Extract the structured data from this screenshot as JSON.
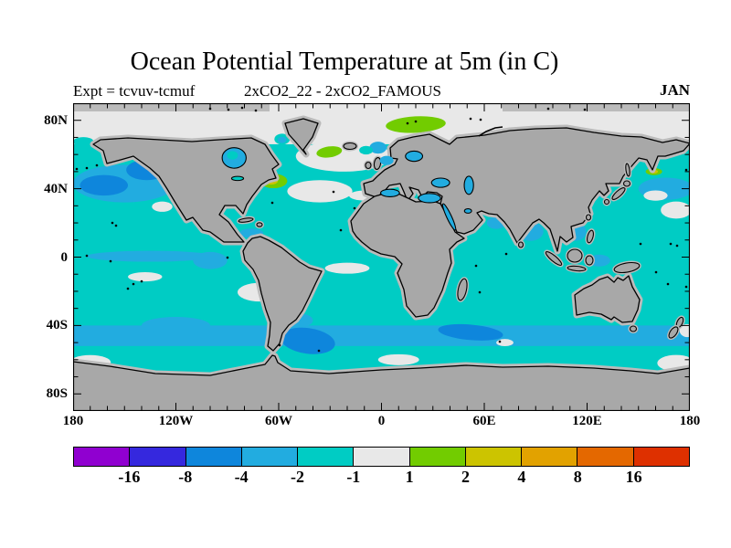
{
  "header": {
    "title": "Ocean Potential Temperature at 5m (in C)",
    "experiment": "Expt = tcvuv-tcmuf",
    "comparison": "2xCO2_22 - 2xCO2_FAMOUS",
    "month": "JAN"
  },
  "chart_data": {
    "type": "heatmap",
    "projection": "global longitude-latitude map",
    "title": "Ocean Potential Temperature at 5m (in C)",
    "subtitle": "2xCO2_22 - 2xCO2_FAMOUS",
    "experiment_label": "Expt = tcvuv-tcmuf",
    "month": "JAN",
    "units": "C",
    "x_axis": {
      "range": [
        -180,
        180
      ],
      "ticks": [
        -180,
        -120,
        -60,
        0,
        60,
        120,
        180
      ],
      "labels": [
        "180",
        "120W",
        "60W",
        "0",
        "60E",
        "120E",
        "180"
      ],
      "minor_tick_deg": 10
    },
    "y_axis": {
      "range": [
        -90,
        90
      ],
      "ticks": [
        80,
        40,
        0,
        -40,
        -80
      ],
      "labels": [
        "80N",
        "40N",
        "0",
        "40S",
        "80S"
      ],
      "minor_tick_deg": 10
    },
    "colorbar": {
      "tick_labels": [
        "-16",
        "-8",
        "-4",
        "-2",
        "-1",
        "1",
        "2",
        "4",
        "8",
        "16"
      ],
      "segment_colors": [
        "#9000D0",
        "#3528DE",
        "#0E86DC",
        "#22ACE0",
        "#00CCC4",
        "#E8E8E8",
        "#72CC00",
        "#CCC400",
        "#E2A200",
        "#E46800",
        "#DE3000"
      ],
      "band_ranges": [
        "<-16",
        "-16..-8",
        "-8..-4",
        "-4..-2",
        "-2..-1",
        "-1..1",
        "1..2",
        "2..4",
        "4..8",
        "8..16",
        ">16"
      ]
    },
    "land_color": "#A8A8A8",
    "land_mask_color": "#BBBBBB",
    "base_band": 4,
    "anomaly_patches": [
      {
        "region": "Arctic Ocean",
        "shape": "rect",
        "lon0": -180,
        "lon1": 180,
        "lat0": 66,
        "lat1": 90,
        "band": 5
      },
      {
        "region": "Bering Strait",
        "shape": "ellipse",
        "lon": -174,
        "lat": 67.5,
        "rlon": 6,
        "rlat": 2.7,
        "band": 4
      },
      {
        "region": "Davis Strait",
        "shape": "ellipse",
        "lon": -58,
        "lat": 69,
        "rlon": 4.5,
        "rlat": 3.2,
        "band": 4
      },
      {
        "region": "Davis Strait core",
        "shape": "ellipse",
        "lon": -58,
        "lat": 68.5,
        "rlon": 2.5,
        "rlat": 1.8,
        "band": 3
      },
      {
        "region": "Subpolar North Atlantic",
        "shape": "ellipse",
        "lon": -22,
        "lat": 59,
        "rlon": 28,
        "rlat": 9,
        "band": 5
      },
      {
        "region": "Norwegian Sea",
        "shape": "ellipse",
        "lon": -2,
        "lat": 64,
        "rlon": 5,
        "rlat": 3.5,
        "band": 3
      },
      {
        "region": "Norwegian Sea cold spot",
        "shape": "ellipse",
        "lon": -9,
        "lat": 62.5,
        "rlon": 4,
        "rlat": 2.5,
        "band": 4
      },
      {
        "region": "Northeast Pacific band",
        "shape": "ellipse",
        "lon": -150,
        "lat": 43,
        "rlon": 30,
        "rlat": 11,
        "band": 3
      },
      {
        "region": "Northwest Pacific band",
        "shape": "ellipse",
        "lon": 166,
        "lat": 40,
        "rlon": 16,
        "rlat": 6.5,
        "band": 3
      },
      {
        "region": "Gulf of Alaska core",
        "shape": "ellipse",
        "lon": -137,
        "lat": 51,
        "rlon": 12,
        "rlat": 6,
        "band": 2
      },
      {
        "region": "Central North Pacific core",
        "shape": "ellipse",
        "lon": -162,
        "lat": 42,
        "rlon": 14,
        "rlat": 6,
        "band": 2
      },
      {
        "region": "Northwest Pacific neutral 1",
        "shape": "ellipse",
        "lon": 172,
        "lat": 27.5,
        "rlon": 9,
        "rlat": 5,
        "band": 5
      },
      {
        "region": "Northwest Pacific neutral 2",
        "shape": "ellipse",
        "lon": 160,
        "lat": 36,
        "rlon": 7,
        "rlat": 3,
        "band": 5
      },
      {
        "region": "California offshore neutral",
        "shape": "ellipse",
        "lon": -128,
        "lat": 29.5,
        "rlon": 6,
        "rlat": 3,
        "band": 5
      },
      {
        "region": "Central North Atlantic neutral",
        "shape": "ellipse",
        "lon": -36,
        "lat": 38.5,
        "rlon": 19,
        "rlat": 6.5,
        "band": 5
      },
      {
        "region": "Azores neutral streak",
        "shape": "ellipse",
        "lon": -9,
        "lat": 36,
        "rlon": 10,
        "rlat": 3,
        "band": 5
      },
      {
        "region": "Equatorial Pacific cold tongue",
        "shape": "ellipse",
        "lon": -135,
        "lat": 0.5,
        "rlon": 37,
        "rlat": 3.2,
        "band": 3
      },
      {
        "region": "Eastern equatorial Pacific",
        "shape": "ellipse",
        "lon": -100,
        "lat": -2,
        "rlon": 10,
        "rlat": 5,
        "band": 3
      },
      {
        "region": "Caribbean Sea",
        "shape": "ellipse",
        "lon": -76,
        "lat": 14,
        "rlon": 7,
        "rlat": 2.7,
        "band": 3
      },
      {
        "region": "Central South Pacific neutral",
        "shape": "ellipse",
        "lon": -138,
        "lat": -11.5,
        "rlon": 10,
        "rlat": 2.7,
        "band": 5
      },
      {
        "region": "Equatorial Atlantic neutral",
        "shape": "ellipse",
        "lon": -20,
        "lat": -6.5,
        "rlon": 13,
        "rlat": 3.2,
        "band": 5
      },
      {
        "region": "Southern mid-latitude band",
        "shape": "rect",
        "lon0": -180,
        "lon1": 180,
        "lat0": -52,
        "lat1": -40,
        "band": 3
      },
      {
        "region": "South Pacific 120W",
        "shape": "ellipse",
        "lon": -120,
        "lat": -40,
        "rlon": 20,
        "rlat": 5,
        "band": 3
      },
      {
        "region": "Brazil-Malvinas confluence",
        "shape": "ellipse",
        "lon": -48,
        "lat": -37,
        "rlon": 8,
        "rlat": 4,
        "band": 3
      },
      {
        "region": "Argentine Basin core",
        "shape": "ellipse",
        "lon": -43,
        "lat": -49,
        "rlon": 16,
        "rlat": 7.5,
        "band": 2,
        "rot": 8
      },
      {
        "region": "Southwest Indian core",
        "shape": "ellipse",
        "lon": 52,
        "lat": -44,
        "rlon": 19,
        "rlat": 4.5,
        "band": 2,
        "rot": 5
      },
      {
        "region": "Peru-Chile offshore neutral",
        "shape": "ellipse",
        "lon": -71,
        "lat": -20.5,
        "rlon": 13,
        "rlat": 5.5,
        "band": 5
      },
      {
        "region": "Southern Ocean 170W neutral",
        "shape": "ellipse",
        "lon": -170,
        "lat": -61.5,
        "rlon": 12,
        "rlat": 4.2,
        "band": 5
      },
      {
        "region": "Southern Ocean 10E neutral",
        "shape": "ellipse",
        "lon": 10,
        "lat": -60,
        "rlon": 12,
        "rlat": 3.2,
        "band": 5
      },
      {
        "region": "Southern Ocean 172E neutral",
        "shape": "ellipse",
        "lon": 172,
        "lat": -62,
        "rlon": 11,
        "rlat": 4.8,
        "band": 5
      },
      {
        "region": "East of New Zealand neutral",
        "shape": "ellipse",
        "lon": 178.5,
        "lat": -43,
        "rlon": 4.5,
        "rlat": 3.8,
        "band": 5
      },
      {
        "region": "South Indian neutral",
        "shape": "ellipse",
        "lon": 72,
        "lat": -50,
        "rlon": 5,
        "rlat": 2.1,
        "band": 5
      },
      {
        "region": "Bay of Bengal",
        "shape": "ellipse",
        "lon": 87,
        "lat": 15,
        "rlon": 7.5,
        "rlat": 5.5,
        "band": 3
      },
      {
        "region": "Arabian Sea",
        "shape": "ellipse",
        "lon": 67,
        "lat": 20,
        "rlon": 5.5,
        "rlat": 3.5,
        "band": 3
      },
      {
        "region": "South China Sea",
        "shape": "ellipse",
        "lon": 113,
        "lat": 15,
        "rlon": 6.5,
        "rlat": 5.5,
        "band": 3
      },
      {
        "region": "Sea of Japan",
        "shape": "ellipse",
        "lon": 128,
        "lat": 39,
        "rlon": 5,
        "rlat": 4,
        "band": 3
      },
      {
        "region": "Banda Sea",
        "shape": "ellipse",
        "lon": 127,
        "lat": -2,
        "rlon": 6.5,
        "rlat": 3.5,
        "band": 3
      },
      {
        "region": "Iceland neutral halo",
        "shape": "ellipse",
        "lon": -29,
        "lat": 60,
        "rlon": 12,
        "rlat": 5.3,
        "band": 5
      },
      {
        "region": "Barents Sea warm",
        "shape": "ellipse",
        "lon": 20,
        "lat": 77.5,
        "rlon": 17.5,
        "rlat": 4.8,
        "band": 6,
        "rot": -3
      },
      {
        "region": "Irminger Sea warm",
        "shape": "ellipse",
        "lon": -30.5,
        "lat": 61.5,
        "rlon": 7.5,
        "rlat": 3.2,
        "band": 6,
        "rot": -8
      },
      {
        "region": "Newfoundland warm",
        "shape": "ellipse",
        "lon": -63,
        "lat": 44.5,
        "rlon": 8,
        "rlat": 4.2,
        "band": 6
      },
      {
        "region": "Newfoundland warm core",
        "shape": "ellipse",
        "lon": -64.5,
        "lat": 44.5,
        "rlon": 4,
        "rlat": 2.1,
        "band": 7
      },
      {
        "region": "Kamchatka warm",
        "shape": "ellipse",
        "lon": 159,
        "lat": 50,
        "rlon": 4.8,
        "rlat": 2.1,
        "band": 6
      },
      {
        "region": "Kamchatka warm core",
        "shape": "ellipse",
        "lon": 159,
        "lat": 50,
        "rlon": 2.4,
        "rlat": 1.1,
        "band": 7
      },
      {
        "region": "North Sea",
        "shape": "ellipse",
        "lon": 3,
        "lat": 56.5,
        "rlon": 4,
        "rlat": 2.7,
        "band": 3,
        "over": true
      },
      {
        "region": "Hudson Bay",
        "shape": "ellipse",
        "lon": -86,
        "lat": 58,
        "rlon": 7,
        "rlat": 6,
        "band": 3,
        "over": true,
        "stroke": true
      },
      {
        "region": "Hudson Bay center",
        "shape": "ellipse",
        "lon": -87,
        "lat": 59.5,
        "rlon": 3.2,
        "rlat": 2.5,
        "band": 4,
        "over": true
      },
      {
        "region": "Baltic Sea",
        "shape": "ellipse",
        "lon": 19,
        "lat": 59,
        "rlon": 5,
        "rlat": 3,
        "band": 3,
        "over": true,
        "stroke": true
      },
      {
        "region": "Mediterranean West",
        "shape": "ellipse",
        "lon": 5,
        "lat": 37.5,
        "rlon": 5.5,
        "rlat": 2.2,
        "band": 3,
        "over": true,
        "stroke": true
      },
      {
        "region": "Mediterranean East",
        "shape": "ellipse",
        "lon": 28,
        "lat": 34.5,
        "rlon": 6.5,
        "rlat": 2.7,
        "band": 3,
        "over": true,
        "stroke": true
      },
      {
        "region": "Black Sea",
        "shape": "ellipse",
        "lon": 34.5,
        "lat": 43.5,
        "rlon": 5.3,
        "rlat": 2.7,
        "band": 3,
        "over": true,
        "stroke": true
      },
      {
        "region": "Caspian Sea",
        "shape": "ellipse",
        "lon": 51,
        "lat": 42,
        "rlon": 2.7,
        "rlat": 5.3,
        "band": 3,
        "over": true,
        "stroke": true
      },
      {
        "region": "Red Sea",
        "shape": "ellipse",
        "lon": 39.5,
        "lat": 23.5,
        "rlon": 1.4,
        "rlat": 8.5,
        "band": 3,
        "over": true,
        "stroke": true,
        "rot": -25
      },
      {
        "region": "Persian Gulf",
        "shape": "ellipse",
        "lon": 50.5,
        "lat": 27,
        "rlon": 2.1,
        "rlat": 1.3,
        "band": 3,
        "over": true,
        "stroke": true
      },
      {
        "region": "Great Lakes",
        "shape": "ellipse",
        "lon": -84,
        "lat": 46,
        "rlon": 3.5,
        "rlat": 1.2,
        "band": 4,
        "over": true,
        "stroke": true
      }
    ]
  }
}
